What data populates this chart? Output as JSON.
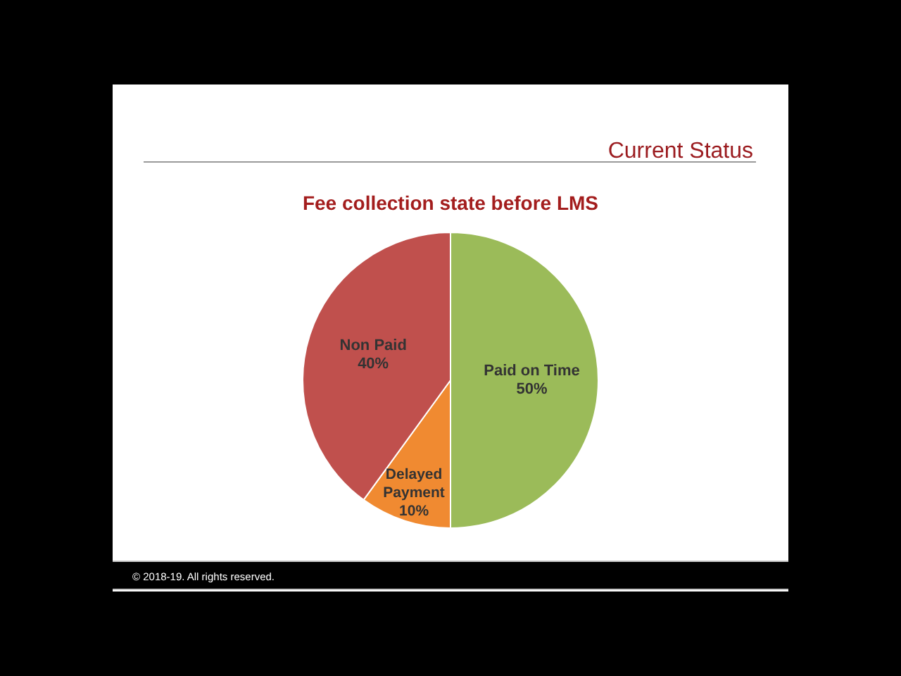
{
  "chart_data": {
    "type": "pie",
    "title": "Fee collection state before LMS",
    "annotations": [
      "Current Status",
      "© 2018-19. All rights reserved."
    ],
    "categories": [
      "Paid on Time",
      "Delayed Payment",
      "Non Paid"
    ],
    "values": [
      50,
      10,
      40
    ],
    "value_labels": [
      "50%",
      "10%",
      "40%"
    ],
    "colors": [
      "#9bbb59",
      "#f08a31",
      "#c0504d"
    ]
  }
}
